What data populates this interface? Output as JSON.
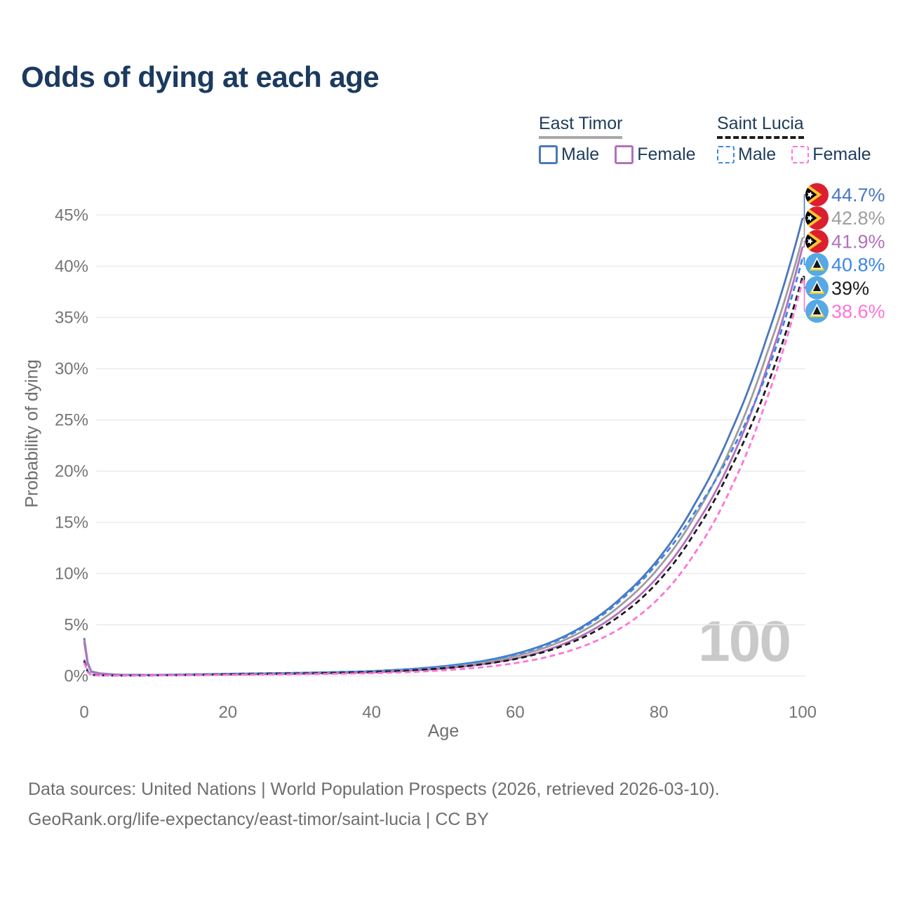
{
  "title": "Odds of dying at each age",
  "watermark": "100",
  "legend": {
    "groups": [
      {
        "country": "East Timor",
        "line_style": "solid",
        "line_color": "#a8a8a8",
        "items": [
          {
            "label": "Male",
            "color": "#4a77bd"
          },
          {
            "label": "Female",
            "color": "#b272bb"
          }
        ]
      },
      {
        "country": "Saint Lucia",
        "line_style": "dashed",
        "line_color": "#1c1c1c",
        "items": [
          {
            "label": "Male",
            "color": "#3d85e8"
          },
          {
            "label": "Female",
            "color": "#ff74d8"
          }
        ]
      }
    ]
  },
  "footer": {
    "line1": "Data sources: United Nations | World Population Prospects (2026, retrieved 2026-03-10).",
    "line2": "GeoRank.org/life-expectancy/east-timor/saint-lucia | CC BY"
  },
  "chart_data": {
    "type": "line",
    "title": "Odds of dying at each age",
    "xlabel": "Age",
    "ylabel": "Probability of dying",
    "xlim": [
      0,
      100
    ],
    "ylim": [
      0,
      45
    ],
    "xticks": [
      0,
      20,
      40,
      60,
      80,
      100
    ],
    "yticks": [
      0,
      5,
      10,
      15,
      20,
      25,
      30,
      35,
      40,
      45
    ],
    "ytick_suffix": "%",
    "grid": true,
    "legend_position": "top-right",
    "ages": [
      0,
      1,
      2,
      5,
      10,
      15,
      20,
      25,
      30,
      35,
      40,
      45,
      50,
      55,
      60,
      65,
      70,
      75,
      80,
      85,
      90,
      95,
      100
    ],
    "series": [
      {
        "name": "East Timor Male",
        "country": "East Timor",
        "sex": "Male",
        "color": "#4a77bd",
        "dashed": false,
        "flag": "east-timor",
        "end_label": "44.7%",
        "end_value": 44.7,
        "values": [
          3.7,
          0.45,
          0.28,
          0.12,
          0.11,
          0.15,
          0.21,
          0.25,
          0.3,
          0.36,
          0.46,
          0.65,
          0.95,
          1.4,
          2.15,
          3.3,
          5.1,
          7.8,
          11.5,
          16.8,
          23.8,
          33.0,
          44.7
        ]
      },
      {
        "name": "East Timor Both sexes",
        "country": "East Timor",
        "sex": "Both",
        "color": "#9e9e9e",
        "dashed": false,
        "flag": "east-timor",
        "end_label": "42.8%",
        "end_value": 42.8,
        "values": [
          3.5,
          0.42,
          0.26,
          0.11,
          0.1,
          0.13,
          0.17,
          0.21,
          0.26,
          0.31,
          0.4,
          0.57,
          0.84,
          1.25,
          1.92,
          2.98,
          4.62,
          7.1,
          10.6,
          15.6,
          22.3,
          31.4,
          42.8
        ]
      },
      {
        "name": "East Timor Female",
        "country": "East Timor",
        "sex": "Female",
        "color": "#b272bb",
        "dashed": false,
        "flag": "east-timor",
        "end_label": "41.9%",
        "end_value": 41.9,
        "values": [
          3.3,
          0.4,
          0.24,
          0.1,
          0.09,
          0.11,
          0.14,
          0.17,
          0.21,
          0.27,
          0.35,
          0.5,
          0.73,
          1.1,
          1.7,
          2.67,
          4.2,
          6.5,
          9.8,
          14.6,
          21.0,
          30.0,
          41.9
        ]
      },
      {
        "name": "Saint Lucia Male",
        "country": "Saint Lucia",
        "sex": "Male",
        "color": "#3d85e8",
        "dashed": true,
        "flag": "saint-lucia",
        "end_label": "40.8%",
        "end_value": 40.8,
        "values": [
          1.6,
          0.12,
          0.07,
          0.05,
          0.07,
          0.12,
          0.2,
          0.26,
          0.31,
          0.38,
          0.48,
          0.66,
          0.95,
          1.4,
          2.1,
          3.2,
          4.95,
          7.6,
          11.2,
          16.0,
          21.8,
          29.5,
          40.8
        ]
      },
      {
        "name": "Saint Lucia Both sexes",
        "country": "Saint Lucia",
        "sex": "Both",
        "color": "#1c1c1c",
        "dashed": true,
        "flag": "saint-lucia",
        "end_label": "39%",
        "end_value": 39,
        "values": [
          1.45,
          0.11,
          0.06,
          0.04,
          0.06,
          0.1,
          0.16,
          0.2,
          0.24,
          0.3,
          0.38,
          0.52,
          0.75,
          1.1,
          1.65,
          2.55,
          3.95,
          6.1,
          9.3,
          14.0,
          20.3,
          28.2,
          39.0
        ]
      },
      {
        "name": "Saint Lucia Female",
        "country": "Saint Lucia",
        "sex": "Female",
        "color": "#ff74d8",
        "dashed": true,
        "flag": "saint-lucia",
        "end_label": "38.6%",
        "end_value": 38.6,
        "values": [
          1.3,
          0.1,
          0.05,
          0.03,
          0.05,
          0.08,
          0.11,
          0.14,
          0.17,
          0.21,
          0.27,
          0.37,
          0.55,
          0.82,
          1.25,
          1.95,
          3.05,
          4.8,
          7.6,
          12.0,
          18.3,
          27.0,
          38.6
        ]
      }
    ]
  }
}
